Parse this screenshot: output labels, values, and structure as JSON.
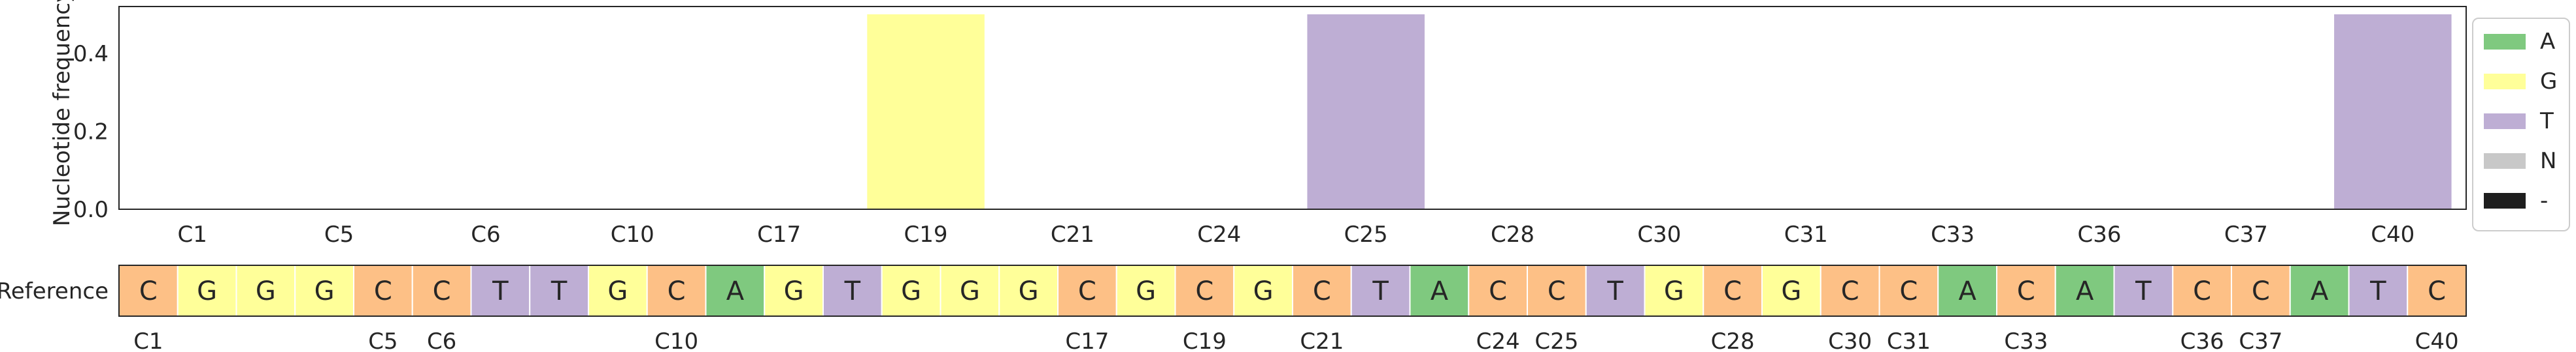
{
  "chart_data": {
    "type": "bar",
    "ylabel": "Nucleotide frequency",
    "ylim": [
      0,
      0.52
    ],
    "yticks": [
      "0.0",
      "0.2",
      "0.4"
    ],
    "grid": false,
    "legend_position": "right",
    "categories": [
      "C1",
      "C5",
      "C6",
      "C10",
      "C17",
      "C19",
      "C21",
      "C24",
      "C25",
      "C28",
      "C30",
      "C31",
      "C33",
      "C36",
      "C37",
      "C40"
    ],
    "series": [
      {
        "name": "A",
        "color": "#7fc97f",
        "values": [
          0,
          0,
          0,
          0,
          0,
          0,
          0,
          0,
          0,
          0,
          0,
          0,
          0,
          0,
          0,
          0
        ]
      },
      {
        "name": "G",
        "color": "#ffff99",
        "values": [
          0,
          0,
          0,
          0,
          0,
          0.5,
          0,
          0,
          0,
          0,
          0,
          0,
          0,
          0,
          0,
          0
        ]
      },
      {
        "name": "T",
        "color": "#beaed4",
        "values": [
          0,
          0,
          0,
          0,
          0,
          0,
          0,
          0,
          0.5,
          0,
          0,
          0,
          0,
          0,
          0,
          0.5
        ]
      },
      {
        "name": "N",
        "color": "#c8c8c8",
        "values": [
          0,
          0,
          0,
          0,
          0,
          0,
          0,
          0,
          0,
          0,
          0,
          0,
          0,
          0,
          0,
          0
        ]
      },
      {
        "name": "-",
        "color": "#1e1e1e",
        "values": [
          0,
          0,
          0,
          0,
          0,
          0,
          0,
          0,
          0,
          0,
          0,
          0,
          0,
          0,
          0,
          0
        ]
      }
    ],
    "reference": {
      "label": "Reference",
      "sequence": [
        "C",
        "G",
        "G",
        "G",
        "C",
        "C",
        "T",
        "T",
        "G",
        "C",
        "A",
        "G",
        "T",
        "G",
        "G",
        "G",
        "C",
        "G",
        "C",
        "G",
        "C",
        "T",
        "A",
        "C",
        "C",
        "T",
        "G",
        "C",
        "G",
        "C",
        "C",
        "A",
        "C",
        "A",
        "T",
        "C",
        "C",
        "A",
        "T",
        "C"
      ],
      "tick_labels": [
        "C1",
        "",
        "",
        "",
        "C5",
        "C6",
        "",
        "",
        "",
        "C10",
        "",
        "",
        "",
        "",
        "",
        "",
        "C17",
        "",
        "C19",
        "",
        "C21",
        "",
        "",
        "C24",
        "C25",
        "",
        "",
        "C28",
        "",
        "C30",
        "C31",
        "",
        "C33",
        "",
        "",
        "C36",
        "C37",
        "",
        "",
        "C40"
      ]
    },
    "base_colors": {
      "A": "#7fc97f",
      "G": "#ffff99",
      "T": "#beaed4",
      "C": "#fdc086",
      "N": "#c8c8c8",
      "-": "#1e1e1e"
    }
  }
}
